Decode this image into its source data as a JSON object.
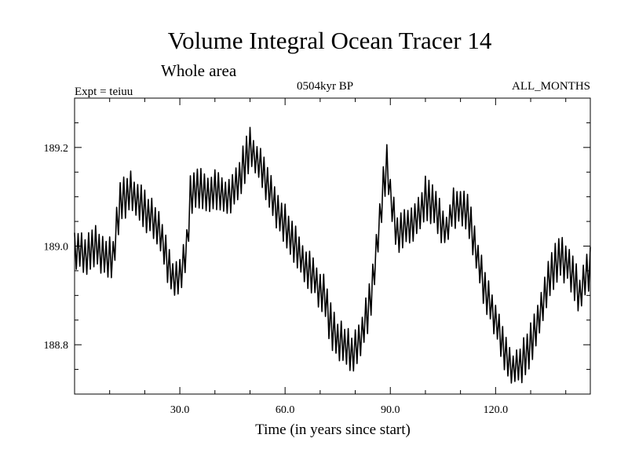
{
  "chart_data": {
    "type": "line",
    "title": "Volume Integral Ocean Tracer 14",
    "subtitle": "Whole area",
    "expt_label": "Expt = teiuu",
    "period_label": "0504kyr BP",
    "months_label": "ALL_MONTHS",
    "xlabel": "Time (in years since start)",
    "ylabel": "",
    "xlim": [
      0,
      147
    ],
    "ylim": [
      188.7,
      189.3
    ],
    "xticks": [
      30,
      60,
      90,
      120
    ],
    "xtick_labels": [
      "30.0",
      "60.0",
      "90.0",
      "120.0"
    ],
    "yticks": [
      188.8,
      189.0,
      189.2
    ],
    "ytick_labels": [
      "188.8",
      "189.0",
      "189.2"
    ],
    "grid": false,
    "envelope": {
      "x": [
        0,
        3,
        6,
        9,
        11,
        13,
        16,
        19,
        22,
        25,
        28,
        30,
        32,
        33,
        35,
        38,
        41,
        44,
        47,
        50,
        53,
        56,
        59,
        62,
        65,
        68,
        71,
        73,
        75,
        77,
        79,
        81,
        83,
        85,
        87,
        88,
        89,
        90,
        92,
        95,
        98,
        100,
        103,
        106,
        108,
        111,
        113,
        116,
        119,
        121,
        123,
        125,
        127,
        130,
        133,
        135,
        138,
        141,
        144,
        147
      ],
      "y": [
        189.0,
        188.98,
        189.0,
        188.97,
        188.98,
        189.09,
        189.11,
        189.08,
        189.06,
        189.01,
        188.93,
        188.94,
        188.99,
        189.1,
        189.12,
        189.1,
        189.12,
        189.09,
        189.14,
        189.2,
        189.16,
        189.1,
        189.06,
        189.02,
        188.97,
        188.94,
        188.9,
        188.84,
        188.81,
        188.8,
        188.78,
        188.8,
        188.85,
        188.92,
        189.05,
        189.12,
        189.17,
        189.1,
        189.02,
        189.04,
        189.06,
        189.1,
        189.07,
        189.03,
        189.08,
        189.08,
        189.04,
        188.94,
        188.87,
        188.83,
        188.77,
        188.75,
        188.76,
        188.8,
        188.87,
        188.93,
        188.98,
        188.96,
        188.9,
        188.96
      ]
    },
    "seasonal_amplitude": 0.036,
    "samples_per_year": 2
  }
}
